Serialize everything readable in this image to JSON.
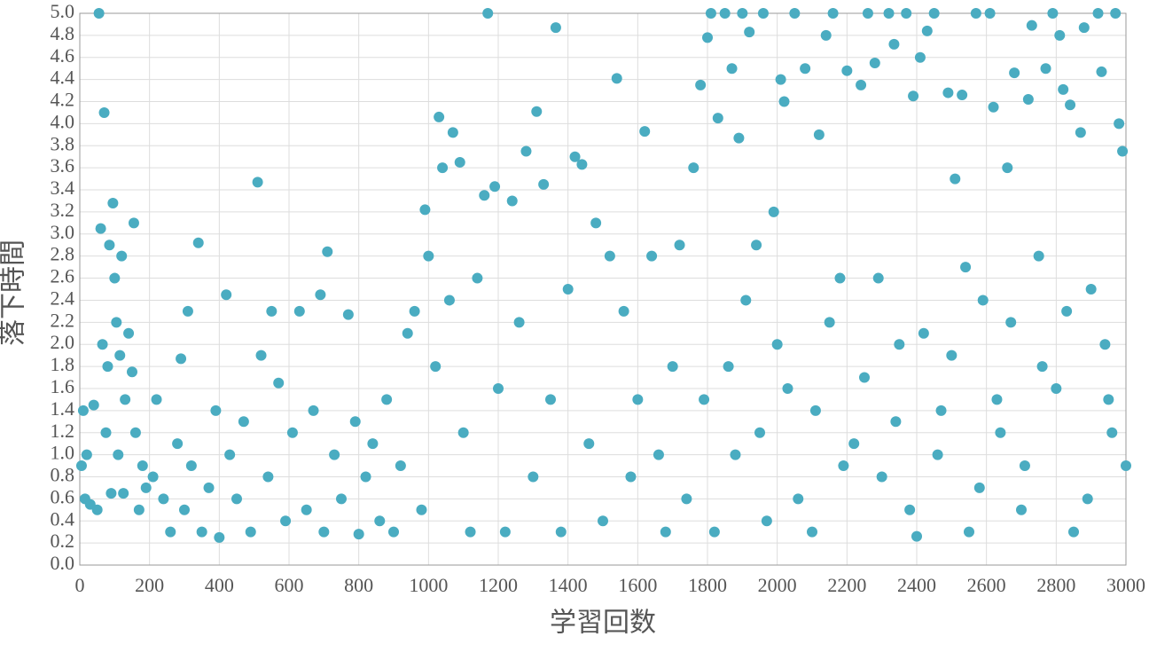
{
  "chart_data": {
    "type": "scatter",
    "x_label": "学習回数",
    "y_label": "落下時間",
    "color": "#4aacc1",
    "grid": true,
    "xlim": [
      0,
      3000
    ],
    "xticks": [
      0,
      200,
      400,
      600,
      800,
      1000,
      1200,
      1400,
      1600,
      1800,
      2000,
      2200,
      2400,
      2600,
      2800,
      3000
    ],
    "ylim": [
      0,
      5
    ],
    "yticks": [
      {
        "value": 0,
        "label": "0.0"
      },
      0.2,
      0.4,
      0.6,
      0.8,
      {
        "value": 1,
        "label": "1.0"
      },
      1.2,
      1.4,
      1.6,
      1.8,
      {
        "value": 2,
        "label": "2.0"
      },
      2.2,
      2.4,
      2.6,
      2.8,
      {
        "value": 3,
        "label": "3.0"
      },
      3.2,
      3.4,
      3.6,
      3.8,
      {
        "value": 4,
        "label": "4.0"
      },
      4.2,
      4.4,
      4.6,
      4.8,
      {
        "value": 5,
        "label": "5.0"
      }
    ],
    "x": [
      5,
      10,
      15,
      20,
      30,
      40,
      50,
      55,
      60,
      65,
      70,
      75,
      80,
      85,
      90,
      95,
      100,
      105,
      110,
      115,
      120,
      125,
      130,
      140,
      150,
      155,
      160,
      170,
      180,
      190,
      210,
      220,
      240,
      260,
      280,
      290,
      300,
      310,
      320,
      340,
      350,
      370,
      390,
      400,
      420,
      430,
      450,
      470,
      490,
      510,
      520,
      540,
      550,
      570,
      590,
      610,
      630,
      650,
      670,
      690,
      700,
      710,
      730,
      750,
      770,
      790,
      800,
      820,
      840,
      860,
      880,
      900,
      920,
      940,
      960,
      980,
      990,
      1000,
      1020,
      1030,
      1040,
      1060,
      1070,
      1090,
      1100,
      1120,
      1140,
      1160,
      1170,
      1190,
      1200,
      1220,
      1240,
      1260,
      1280,
      1300,
      1310,
      1330,
      1350,
      1365,
      1380,
      1400,
      1420,
      1440,
      1460,
      1480,
      1500,
      1520,
      1540,
      1560,
      1580,
      1600,
      1620,
      1640,
      1660,
      1680,
      1700,
      1720,
      1740,
      1760,
      1780,
      1790,
      1800,
      1810,
      1830,
      1850,
      1870,
      1880,
      1890,
      1900,
      1920,
      1940,
      1960,
      1970,
      1990,
      2010,
      2020,
      2030,
      2050,
      2080,
      2100,
      2120,
      2140,
      2160,
      2180,
      2200,
      2220,
      2240,
      2260,
      2280,
      2300,
      2320,
      2335,
      2350,
      2370,
      2390,
      2400,
      2410,
      2430,
      2450,
      2470,
      2490,
      2510,
      2530,
      2550,
      2570,
      2590,
      2610,
      2620,
      2640,
      2660,
      2680,
      2700,
      2720,
      2730,
      2750,
      2770,
      2790,
      2800,
      2810,
      2820,
      2840,
      2850,
      2870,
      2880,
      2900,
      2920,
      2930,
      2950,
      2970,
      2980,
      2990,
      3000,
      1820,
      1860,
      1910,
      1950,
      2000,
      2060,
      2110,
      2150,
      2190,
      2250,
      2290,
      2340,
      2380,
      2420,
      2460,
      2500,
      2540,
      2580,
      2630,
      2670,
      2710,
      2760,
      2830,
      2890,
      2940,
      2960
    ],
    "y": [
      0.9,
      1.4,
      0.6,
      1.0,
      0.55,
      1.45,
      0.5,
      5.0,
      3.05,
      2.0,
      4.1,
      1.2,
      1.8,
      2.9,
      0.65,
      3.28,
      2.6,
      2.2,
      1.0,
      1.9,
      2.8,
      0.65,
      1.5,
      2.1,
      1.75,
      3.1,
      1.2,
      0.5,
      0.9,
      0.7,
      0.8,
      1.5,
      0.6,
      0.3,
      1.1,
      1.87,
      0.5,
      2.3,
      0.9,
      2.92,
      0.3,
      0.7,
      1.4,
      0.25,
      2.45,
      1.0,
      0.6,
      1.3,
      0.3,
      3.47,
      1.9,
      0.8,
      2.3,
      1.65,
      0.4,
      1.2,
      2.3,
      0.5,
      1.4,
      2.45,
      0.3,
      2.84,
      1.0,
      0.6,
      2.27,
      1.3,
      0.28,
      0.8,
      1.1,
      0.4,
      1.5,
      0.3,
      0.9,
      2.1,
      2.3,
      0.5,
      3.22,
      2.8,
      1.8,
      4.06,
      3.6,
      2.4,
      3.92,
      3.65,
      1.2,
      0.3,
      2.6,
      3.35,
      5.0,
      3.43,
      1.6,
      0.3,
      3.3,
      2.2,
      3.75,
      0.8,
      4.11,
      3.45,
      1.5,
      4.87,
      0.3,
      2.5,
      3.7,
      3.63,
      1.1,
      3.1,
      0.4,
      2.8,
      4.41,
      2.3,
      0.8,
      1.5,
      3.93,
      2.8,
      1.0,
      0.3,
      1.8,
      2.9,
      0.6,
      3.6,
      4.35,
      1.5,
      4.78,
      5.0,
      4.05,
      5.0,
      4.5,
      1.0,
      3.87,
      5.0,
      4.83,
      2.9,
      5.0,
      0.4,
      3.2,
      4.4,
      4.2,
      1.6,
      5.0,
      4.5,
      0.3,
      3.9,
      4.8,
      5.0,
      2.6,
      4.48,
      1.1,
      4.35,
      5.0,
      4.55,
      0.8,
      5.0,
      4.72,
      2.0,
      5.0,
      4.25,
      0.26,
      4.6,
      4.84,
      5.0,
      1.4,
      4.28,
      3.5,
      4.26,
      0.3,
      5.0,
      2.4,
      5.0,
      4.15,
      1.2,
      3.6,
      4.46,
      0.5,
      4.22,
      4.89,
      2.8,
      4.5,
      5.0,
      1.6,
      4.8,
      4.31,
      4.17,
      0.3,
      3.92,
      4.87,
      2.5,
      5.0,
      4.47,
      1.5,
      5.0,
      4.0,
      3.75,
      0.9,
      0.3,
      1.8,
      2.4,
      1.2,
      2.0,
      0.6,
      1.4,
      2.2,
      0.9,
      1.7,
      2.6,
      1.3,
      0.5,
      2.1,
      1.0,
      1.9,
      2.7,
      0.7,
      1.5,
      2.2,
      0.9,
      1.8,
      2.3,
      0.6,
      2.0,
      1.2
    ]
  }
}
